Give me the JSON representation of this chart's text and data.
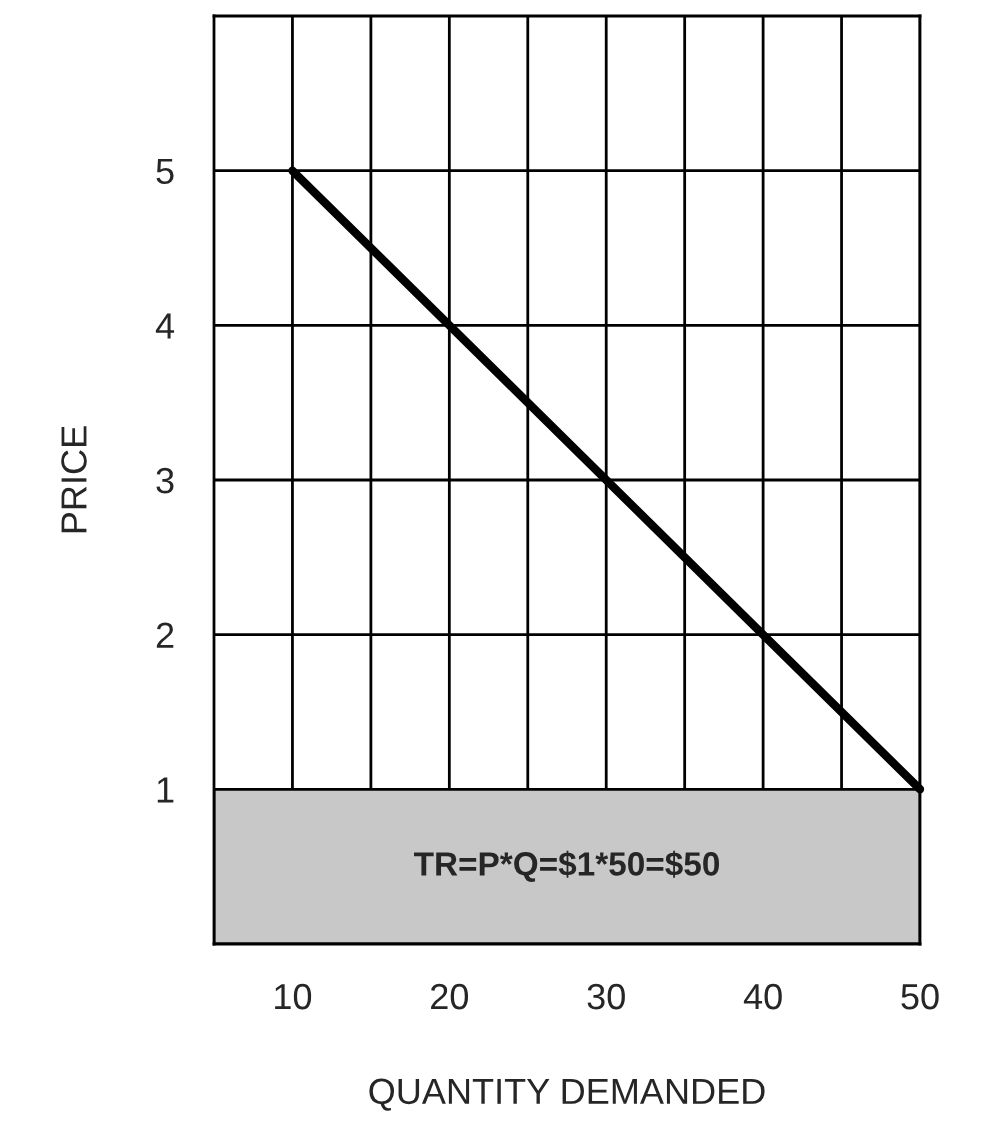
{
  "chart_data": {
    "type": "line",
    "xlabel": "QUANTITY DEMANDED",
    "ylabel": "PRICE",
    "x": [
      10,
      50
    ],
    "series": [
      {
        "color": "#000000",
        "values": [
          5,
          1
        ]
      }
    ],
    "xlim": [
      5,
      50
    ],
    "ylim": [
      0,
      6
    ],
    "xticks": [
      10,
      {
        "value": 15,
        "label": null
      },
      20,
      {
        "value": 25,
        "label": null
      },
      30,
      {
        "value": 35,
        "label": null
      },
      40,
      {
        "value": 45,
        "label": null
      },
      50
    ],
    "yticks": [
      1,
      2,
      3,
      4,
      5
    ],
    "grid": true,
    "marker": "none",
    "line_style": "solid",
    "bands": [
      {
        "axis": "y",
        "from": 0,
        "to": 1,
        "label": "TR=P*Q=$1*50=$50",
        "color": "#c8c8c8"
      }
    ]
  }
}
